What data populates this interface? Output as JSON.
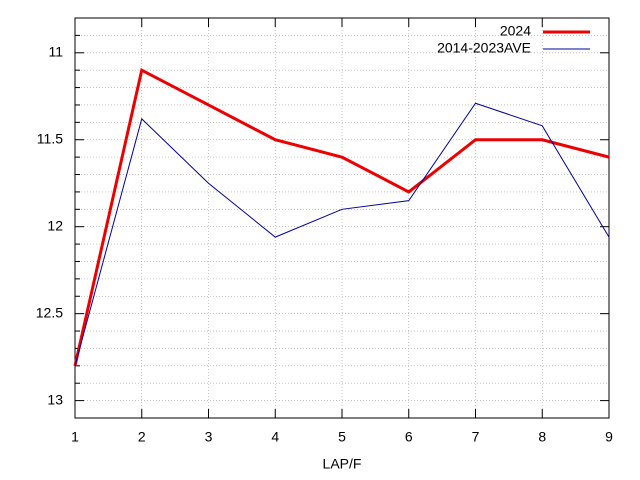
{
  "chart_data": {
    "type": "line",
    "x_label": "LAP/F",
    "x": [
      1,
      2,
      3,
      4,
      5,
      6,
      7,
      8,
      9
    ],
    "xlim": [
      1,
      9
    ],
    "xticks": [
      1,
      2,
      3,
      4,
      5,
      6,
      7,
      8,
      9
    ],
    "ylim": [
      10.8,
      13.1
    ],
    "y_reversed": true,
    "yticks": [
      11,
      11.5,
      12,
      12.5,
      13
    ],
    "y_minor_ticks": [
      10.9,
      11.1,
      11.2,
      11.3,
      11.4,
      11.6,
      11.7,
      11.8,
      11.9,
      12.1,
      12.2,
      12.3,
      12.4,
      12.6,
      12.7,
      12.8,
      12.9,
      13.1
    ],
    "grid": true,
    "legend_position": "top-right",
    "series": [
      {
        "name": "2024",
        "color": "#ee0000",
        "width": 3,
        "values": [
          12.8,
          11.1,
          11.3,
          11.5,
          11.6,
          11.8,
          11.5,
          11.5,
          11.6
        ]
      },
      {
        "name": "2014-2023AVE",
        "color": "#0000a0",
        "width": 1,
        "values": [
          12.8,
          11.38,
          11.75,
          12.06,
          11.9,
          11.85,
          11.29,
          11.42,
          12.06
        ]
      }
    ]
  }
}
